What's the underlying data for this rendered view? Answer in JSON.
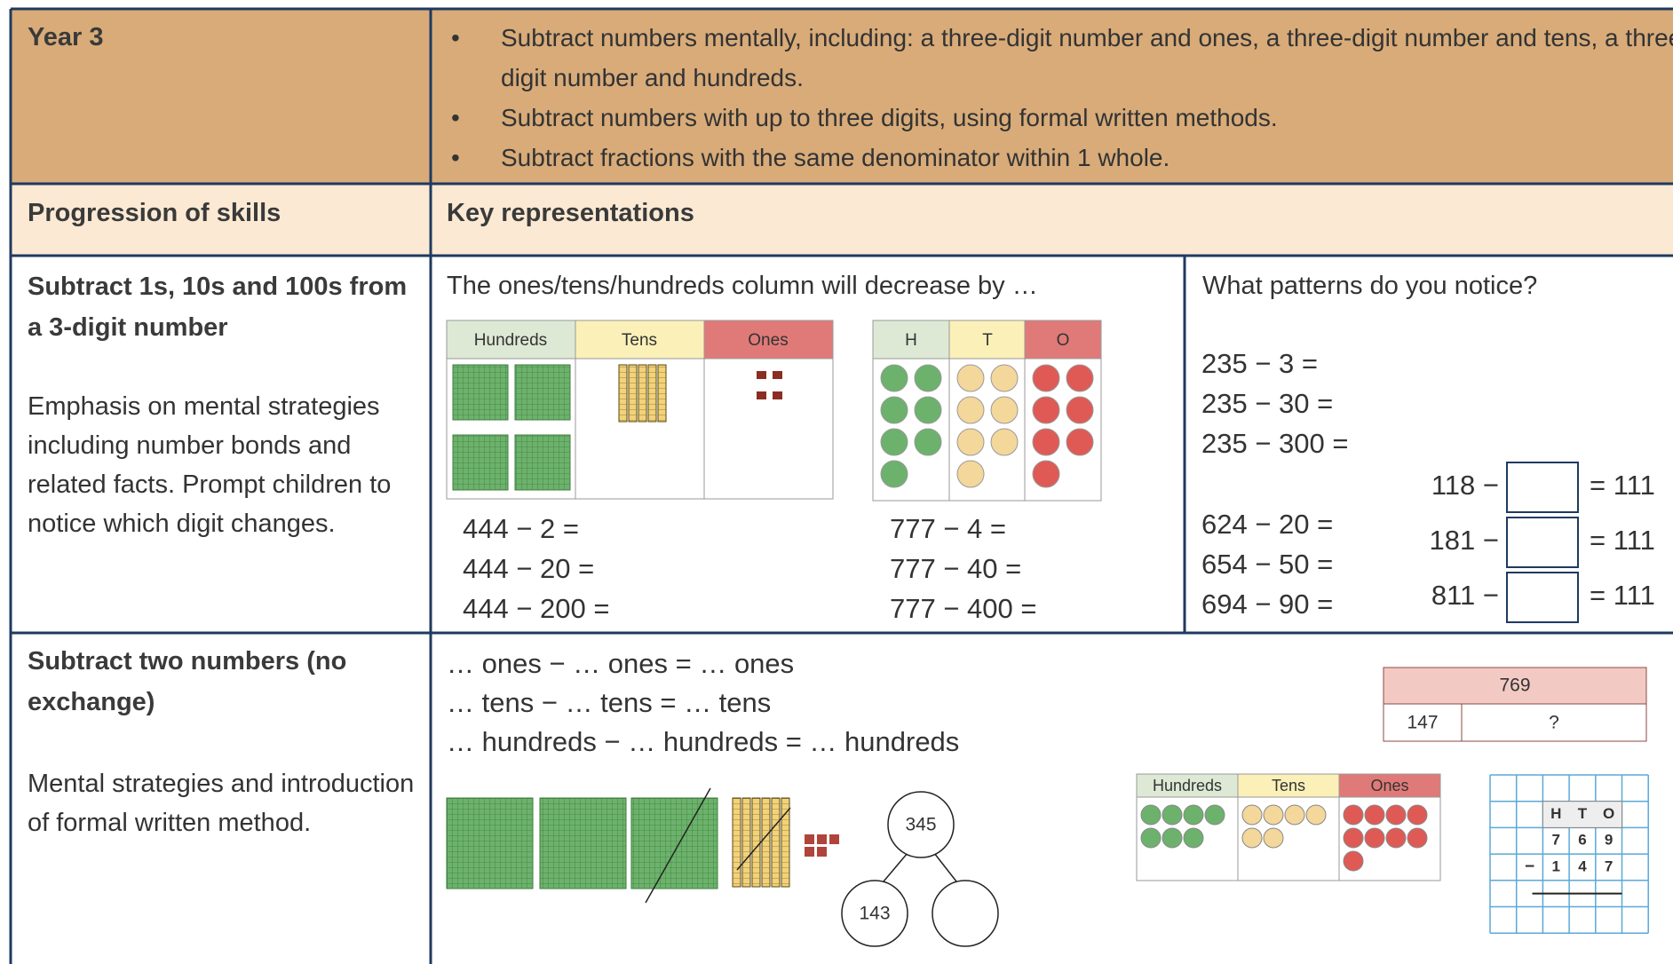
{
  "header": {
    "year": "Year 3",
    "objectives": [
      "Subtract numbers mentally, including:  a three-digit number and ones, a three-digit number and tens, a three-digit number and hundreds.",
      "Subtract numbers with up to three digits, using formal written methods.",
      "Subtract fractions with the same denominator within 1 whole."
    ]
  },
  "columns": {
    "skills": "Progression of skills",
    "representations": "Key representations"
  },
  "rows": [
    {
      "skill": "Subtract 1s, 10s and 100s from a 3-digit number",
      "notes": "Emphasis on mental strategies including number bonds and related facts. Prompt children to notice which digit changes.",
      "prompt": "The ones/tens/hundreds column will decrease by …",
      "place_value_chart": {
        "headers": [
          "Hundreds",
          "Tens",
          "Ones"
        ]
      },
      "counters_chart": {
        "headers": [
          "H",
          "T",
          "O"
        ]
      },
      "equations_a": [
        "444 − 2 =",
        "444 − 20 =",
        "444 − 200 ="
      ],
      "equations_b": [
        "777 − 4 =",
        "777 − 40 =",
        "777 − 400 ="
      ],
      "patterns": {
        "question": "What patterns do you notice?",
        "set_a": [
          "235 − 3 =",
          "235 − 30 =",
          "235 − 300 ="
        ],
        "set_b": [
          "624 − 20 =",
          "654 − 50 =",
          "694 − 90 ="
        ],
        "missing": [
          {
            "left": "118 −",
            "right": "= 111"
          },
          {
            "left": "181 −",
            "right": "= 111"
          },
          {
            "left": "811 −",
            "right": "= 111"
          }
        ]
      }
    },
    {
      "skill": "Subtract two numbers (no exchange)",
      "notes": "Mental strategies and introduction of formal written method.",
      "sentences": [
        "… ones − … ones = … ones",
        "… tens − … tens = … tens",
        "… hundreds − … hundreds = … hundreds"
      ],
      "bar_model": {
        "whole": "769",
        "part": "147",
        "unknown": "?"
      },
      "part_whole": {
        "whole": "345",
        "part": "143"
      },
      "place_value_chart": {
        "headers": [
          "Hundreds",
          "Tens",
          "Ones"
        ]
      },
      "column_grid": {
        "headers": [
          "H",
          "T",
          "O"
        ],
        "top": [
          "7",
          "6",
          "9"
        ],
        "sign": "−",
        "bottom": [
          "1",
          "4",
          "7"
        ]
      }
    }
  ]
}
